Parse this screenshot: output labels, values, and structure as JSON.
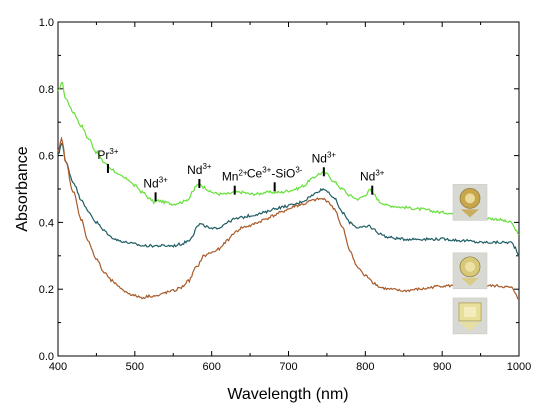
{
  "chart_data": {
    "type": "line",
    "xlabel": "Wavelength (nm)",
    "ylabel": "Absorbance",
    "xlim": [
      400,
      1000
    ],
    "ylim": [
      0.0,
      1.0
    ],
    "xticks": [
      400,
      500,
      600,
      700,
      800,
      900,
      1000
    ],
    "yticks": [
      0.0,
      0.2,
      0.4,
      0.6,
      0.8,
      1.0
    ],
    "ytick_labels": [
      "0.0",
      "0.2",
      "0.4",
      "0.6",
      "0.8",
      "1.0"
    ],
    "grid": false,
    "legend": "gem photographs at right, one beside each trace",
    "series": [
      {
        "color": "#66e03a",
        "x": [
          400,
          405,
          410,
          420,
          430,
          440,
          450,
          460,
          470,
          480,
          490,
          500,
          510,
          520,
          525,
          530,
          540,
          550,
          560,
          570,
          575,
          580,
          585,
          590,
          600,
          610,
          620,
          630,
          640,
          650,
          660,
          670,
          680,
          690,
          700,
          710,
          720,
          730,
          740,
          745,
          750,
          760,
          770,
          780,
          790,
          800,
          805,
          810,
          820,
          830,
          850,
          870,
          900,
          930,
          950,
          970,
          990,
          995,
          1000
        ],
        "y": [
          0.79,
          0.82,
          0.77,
          0.73,
          0.69,
          0.65,
          0.61,
          0.58,
          0.56,
          0.54,
          0.53,
          0.51,
          0.49,
          0.47,
          0.46,
          0.465,
          0.46,
          0.455,
          0.46,
          0.47,
          0.49,
          0.51,
          0.515,
          0.505,
          0.49,
          0.485,
          0.485,
          0.49,
          0.49,
          0.485,
          0.485,
          0.49,
          0.49,
          0.49,
          0.495,
          0.5,
          0.51,
          0.53,
          0.545,
          0.55,
          0.545,
          0.52,
          0.5,
          0.48,
          0.47,
          0.48,
          0.5,
          0.485,
          0.46,
          0.45,
          0.445,
          0.44,
          0.43,
          0.42,
          0.415,
          0.41,
          0.4,
          0.38,
          0.36
        ]
      },
      {
        "color": "#1f5d63",
        "x": [
          400,
          405,
          410,
          420,
          430,
          440,
          450,
          460,
          470,
          480,
          490,
          500,
          510,
          520,
          530,
          540,
          550,
          560,
          570,
          575,
          580,
          585,
          590,
          600,
          610,
          620,
          630,
          640,
          650,
          660,
          670,
          680,
          690,
          700,
          710,
          720,
          730,
          740,
          745,
          750,
          760,
          770,
          780,
          790,
          800,
          805,
          810,
          820,
          830,
          850,
          870,
          900,
          930,
          950,
          970,
          990,
          995,
          1000
        ],
        "y": [
          0.6,
          0.64,
          0.58,
          0.52,
          0.47,
          0.43,
          0.4,
          0.375,
          0.355,
          0.345,
          0.34,
          0.335,
          0.33,
          0.33,
          0.33,
          0.33,
          0.33,
          0.335,
          0.345,
          0.36,
          0.385,
          0.395,
          0.39,
          0.38,
          0.385,
          0.4,
          0.41,
          0.415,
          0.42,
          0.425,
          0.43,
          0.44,
          0.445,
          0.45,
          0.455,
          0.465,
          0.48,
          0.495,
          0.5,
          0.495,
          0.47,
          0.43,
          0.4,
          0.385,
          0.385,
          0.39,
          0.38,
          0.365,
          0.355,
          0.35,
          0.35,
          0.35,
          0.345,
          0.34,
          0.34,
          0.34,
          0.325,
          0.3
        ]
      },
      {
        "color": "#a85a2a",
        "x": [
          400,
          405,
          410,
          420,
          430,
          440,
          450,
          460,
          470,
          480,
          490,
          500,
          510,
          520,
          530,
          540,
          550,
          560,
          570,
          580,
          590,
          600,
          610,
          620,
          630,
          640,
          650,
          660,
          670,
          680,
          690,
          700,
          710,
          720,
          730,
          740,
          745,
          750,
          760,
          770,
          780,
          790,
          800,
          805,
          810,
          820,
          830,
          850,
          870,
          900,
          930,
          950,
          970,
          990,
          995,
          1000
        ],
        "y": [
          0.61,
          0.65,
          0.58,
          0.49,
          0.41,
          0.34,
          0.29,
          0.25,
          0.225,
          0.205,
          0.19,
          0.18,
          0.175,
          0.18,
          0.18,
          0.19,
          0.195,
          0.205,
          0.225,
          0.265,
          0.3,
          0.31,
          0.32,
          0.345,
          0.37,
          0.385,
          0.39,
          0.4,
          0.41,
          0.42,
          0.43,
          0.44,
          0.45,
          0.455,
          0.465,
          0.47,
          0.47,
          0.465,
          0.44,
          0.385,
          0.315,
          0.265,
          0.24,
          0.235,
          0.22,
          0.205,
          0.2,
          0.195,
          0.2,
          0.21,
          0.21,
          0.21,
          0.21,
          0.205,
          0.19,
          0.17
        ]
      }
    ],
    "annotations": [
      {
        "base": "Pr",
        "sup": "3+",
        "x": 465,
        "y_tick": 0.575
      },
      {
        "base": "Nd",
        "sup": "3+",
        "x": 527,
        "y_tick": 0.49
      },
      {
        "base": "Nd",
        "sup": "3+",
        "x": 584,
        "y_tick": 0.53
      },
      {
        "base": "Mn",
        "sup": "2+",
        "x": 630,
        "y_tick": 0.51
      },
      {
        "base": "Ce",
        "sup": "3+",
        "base2": "-SiO",
        "sup2": "3-",
        "x": 682,
        "y_tick": 0.52
      },
      {
        "base": "Nd",
        "sup": "3+",
        "x": 746,
        "y_tick": 0.565
      },
      {
        "base": "Nd",
        "sup": "3+",
        "x": 809,
        "y_tick": 0.51
      }
    ],
    "gem_images": [
      {
        "name": "gem-photo-1",
        "cut": "round",
        "y_center": 0.46,
        "color": "#c7a64a"
      },
      {
        "name": "gem-photo-2",
        "cut": "round",
        "y_center": 0.255,
        "color": "#d8c978"
      },
      {
        "name": "gem-photo-3",
        "cut": "emerald",
        "y_center": 0.12,
        "color": "#e8df9a"
      }
    ]
  }
}
